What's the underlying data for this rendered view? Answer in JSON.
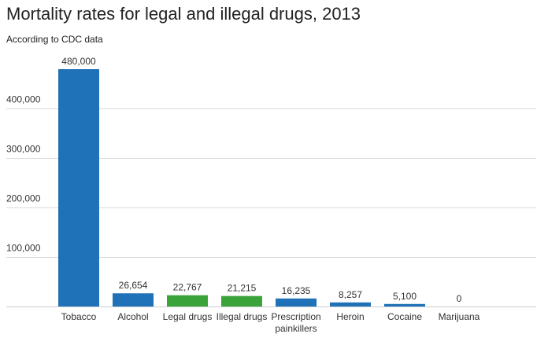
{
  "chart_data": {
    "type": "bar",
    "title": "Mortality rates for legal and illegal drugs, 2013",
    "subtitle": "According to CDC data",
    "xlabel": "",
    "ylabel": "",
    "ylim": [
      0,
      480000
    ],
    "yticks": [
      100000,
      200000,
      300000,
      400000
    ],
    "ytick_labels": [
      "100,000",
      "200,000",
      "300,000",
      "400,000"
    ],
    "grid": true,
    "categories": [
      [
        "Tobacco"
      ],
      [
        "Alcohol"
      ],
      [
        "Legal drugs"
      ],
      [
        "Illegal drugs"
      ],
      [
        "Prescription",
        "painkillers"
      ],
      [
        "Heroin"
      ],
      [
        "Cocaine"
      ],
      [
        "Marijuana"
      ]
    ],
    "values": [
      480000,
      26654,
      22767,
      21215,
      16235,
      8257,
      5100,
      0
    ],
    "value_labels": [
      "480,000",
      "26,654",
      "22,767",
      "21,215",
      "16,235",
      "8,257",
      "5,100",
      "0"
    ],
    "bar_colors": [
      "#2072b8",
      "#2072b8",
      "#3aa43a",
      "#3aa43a",
      "#2072b8",
      "#2072b8",
      "#2072b8",
      "#2072b8"
    ]
  }
}
